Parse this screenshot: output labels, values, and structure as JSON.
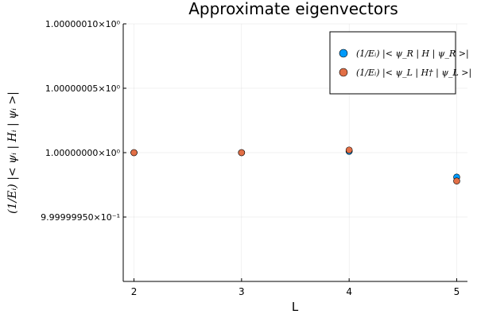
{
  "chart_data": {
    "type": "scatter",
    "title": "Approximate eigenvectors",
    "xlabel": "L",
    "ylabel": "(1/Eᵢ) |< ψᵢ | Hᵢ | ψᵢ >|",
    "xlim": [
      1.9,
      5.1
    ],
    "ylim": [
      0.9999999,
      1.0000001
    ],
    "x_ticks": [
      2,
      3,
      4,
      5
    ],
    "x_tick_labels": [
      "2",
      "3",
      "4",
      "5"
    ],
    "y_ticks": [
      0.99999995,
      1.0,
      1.00000005,
      1.0000001
    ],
    "y_tick_labels": [
      "9.99999950×10⁻¹",
      "1.00000000×10⁰",
      "1.00000005×10⁰",
      "1.00000010×10⁰"
    ],
    "grid": true,
    "legend_position": "top-right",
    "series": [
      {
        "name": "(1/Eᵢ) |< ψ_R | H | ψ_R >|",
        "color": "#009AFA",
        "x": [
          2,
          3,
          4,
          5
        ],
        "y": [
          1.0,
          1.0,
          1.000000001,
          0.999999981
        ]
      },
      {
        "name": "(1/Eᵢ) |< ψ_L | H† | ψ_L >|",
        "color": "#E26F46",
        "x": [
          2,
          3,
          4,
          5
        ],
        "y": [
          1.0,
          1.0,
          1.000000002,
          0.999999978
        ]
      }
    ]
  }
}
